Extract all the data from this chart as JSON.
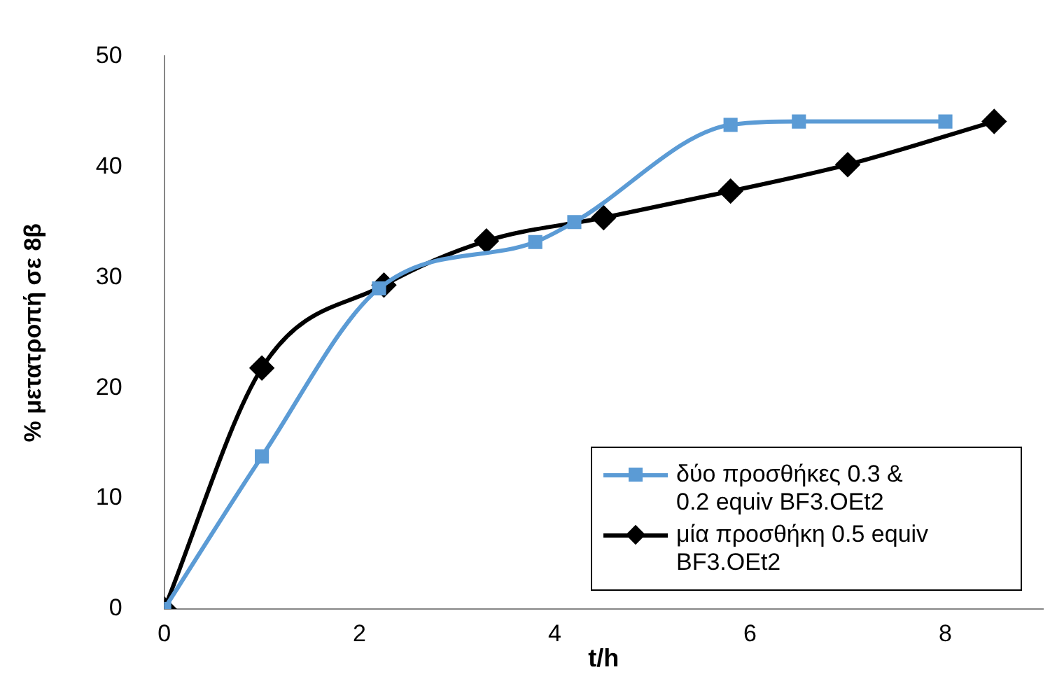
{
  "chart_data": {
    "type": "line",
    "xlabel": "t/h",
    "ylabel": "% μετατροπή σε 8β",
    "xlim": [
      0,
      9
    ],
    "xticks": [
      0,
      2,
      4,
      6,
      8
    ],
    "ylim": [
      0,
      50
    ],
    "yticks": [
      0,
      10,
      20,
      30,
      40,
      50
    ],
    "grid": false,
    "legend": "bottom right",
    "series": [
      {
        "name": "δύο προσθήκες 0.3 & 0.2 equiv BF3.OEt2",
        "color": "#5b9bd5",
        "marker": "square",
        "x": [
          0,
          1,
          2.2,
          3.8,
          4.2,
          5.8,
          6.5,
          8
        ],
        "values": [
          0,
          13.8,
          29,
          33.2,
          35,
          43.8,
          44.1,
          44.1
        ]
      },
      {
        "name": "μία προσθήκη 0.5 equiv BF3.OEt2",
        "color": "#000000",
        "marker": "diamond",
        "x": [
          0,
          1,
          2.25,
          3.3,
          4.5,
          5.8,
          7,
          8.5
        ],
        "values": [
          0,
          21.8,
          29.3,
          33.3,
          35.4,
          37.8,
          40.2,
          44.1
        ]
      }
    ]
  }
}
